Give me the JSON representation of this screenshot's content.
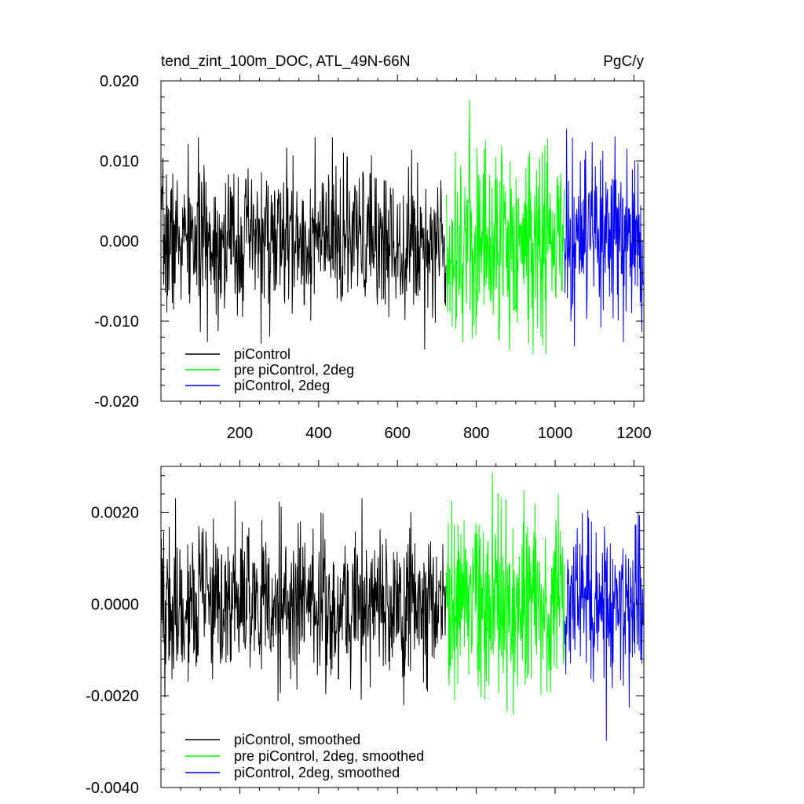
{
  "chart_data": [
    {
      "type": "line",
      "title": "tend_zint_100m_DOC, ATL_49N-66N",
      "units": "PgC/y",
      "xlim": [
        0,
        1225
      ],
      "ylim": [
        -0.02,
        0.02
      ],
      "x_ticks": [
        200,
        400,
        600,
        800,
        1000,
        1200
      ],
      "y_ticks": [
        {
          "value": 0.02,
          "label": "0.020"
        },
        {
          "value": 0.01,
          "label": "0.010"
        },
        {
          "value": 0.0,
          "label": "0.000"
        },
        {
          "value": -0.01,
          "label": "-0.010"
        },
        {
          "value": -0.02,
          "label": "-0.020"
        }
      ],
      "legend_position": "bottom-left",
      "series": [
        {
          "name": "piControl",
          "color": "#000000",
          "x_range": [
            1,
            723
          ],
          "std": 0.0045,
          "max": 0.0129,
          "min": -0.0178
        },
        {
          "name": "pre piControl, 2deg",
          "color": "#00ff00",
          "x_range": [
            724,
            1023
          ],
          "std": 0.0062,
          "max": 0.0176,
          "min": -0.0141
        },
        {
          "name": "piControl, 2deg",
          "color": "#0000ff",
          "x_range": [
            1024,
            1223
          ],
          "std": 0.0055,
          "max": 0.0161,
          "min": -0.0135
        }
      ]
    },
    {
      "type": "line",
      "xlim": [
        0,
        1225
      ],
      "ylim": [
        -0.004,
        0.003
      ],
      "x_ticks": [
        200,
        400,
        600,
        800,
        1000,
        1200
      ],
      "y_ticks": [
        {
          "value": 0.002,
          "label": "0.0020"
        },
        {
          "value": 0.0,
          "label": "0.0000"
        },
        {
          "value": -0.002,
          "label": "-0.0020"
        },
        {
          "value": -0.004,
          "label": "-0.0040"
        }
      ],
      "legend_position": "bottom-left",
      "series": [
        {
          "name": "piControl, smoothed",
          "color": "#000000",
          "x_range": [
            1,
            723
          ],
          "std": 0.00085,
          "max": 0.0023,
          "min": -0.0022
        },
        {
          "name": "pre piControl, 2deg, smoothed",
          "color": "#00ff00",
          "x_range": [
            724,
            1023
          ],
          "std": 0.001,
          "max": 0.0029,
          "min": -0.0024
        },
        {
          "name": "piControl, 2deg, smoothed",
          "color": "#0000ff",
          "x_range": [
            1024,
            1223
          ],
          "std": 0.0009,
          "max": 0.0022,
          "min": -0.0035
        }
      ]
    }
  ]
}
